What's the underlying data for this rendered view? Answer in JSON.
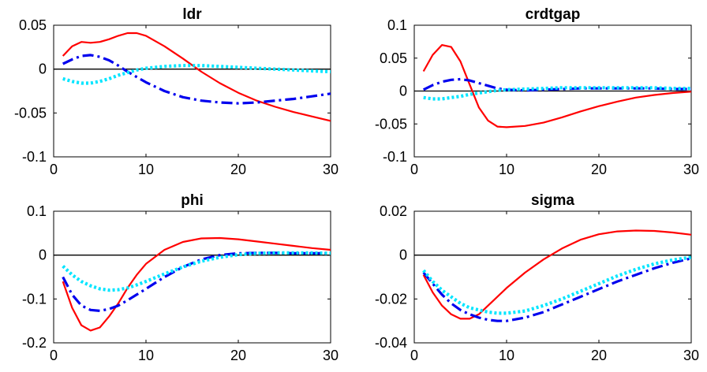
{
  "chart_data": [
    {
      "type": "line",
      "title": "ldr",
      "xlim": [
        0,
        30
      ],
      "ylim": [
        -0.1,
        0.05
      ],
      "xticks": [
        "0",
        "10",
        "20",
        "30"
      ],
      "yticks": [
        "-0.1",
        "-0.05",
        "0",
        "0.05"
      ],
      "ytick_values": [
        -0.1,
        -0.05,
        0,
        0.05
      ],
      "zero_line": true,
      "series": [
        {
          "color": "#ff0000",
          "style": "solid",
          "x": [
            1,
            2,
            3,
            4,
            5,
            6,
            7,
            8,
            9,
            10,
            12,
            14,
            16,
            18,
            20,
            22,
            24,
            26,
            28,
            30
          ],
          "y": [
            0.015,
            0.026,
            0.031,
            0.03,
            0.031,
            0.034,
            0.038,
            0.041,
            0.041,
            0.038,
            0.026,
            0.012,
            -0.003,
            -0.016,
            -0.027,
            -0.036,
            -0.043,
            -0.049,
            -0.054,
            -0.059
          ]
        },
        {
          "color": "#0000ee",
          "style": "dashdot",
          "x": [
            1,
            2,
            3,
            4,
            5,
            6,
            7,
            8,
            9,
            10,
            12,
            14,
            16,
            18,
            20,
            22,
            24,
            26,
            28,
            30
          ],
          "y": [
            0.006,
            0.011,
            0.015,
            0.016,
            0.014,
            0.01,
            0.004,
            -0.003,
            -0.009,
            -0.015,
            -0.025,
            -0.032,
            -0.036,
            -0.038,
            -0.039,
            -0.038,
            -0.036,
            -0.034,
            -0.031,
            -0.028
          ]
        },
        {
          "color": "#00e5ff",
          "style": "dotted",
          "x": [
            1,
            2,
            3,
            4,
            5,
            6,
            7,
            8,
            9,
            10,
            12,
            14,
            16,
            18,
            20,
            22,
            24,
            26,
            28,
            30
          ],
          "y": [
            -0.011,
            -0.014,
            -0.016,
            -0.016,
            -0.014,
            -0.011,
            -0.007,
            -0.004,
            -0.001,
            0.001,
            0.003,
            0.004,
            0.004,
            0.003,
            0.002,
            0.001,
            0.0,
            -0.001,
            -0.002,
            -0.003
          ]
        }
      ]
    },
    {
      "type": "line",
      "title": "crdtgap",
      "xlim": [
        0,
        30
      ],
      "ylim": [
        -0.1,
        0.1
      ],
      "xticks": [
        "0",
        "10",
        "20",
        "30"
      ],
      "yticks": [
        "-0.1",
        "-0.05",
        "0",
        "0.05",
        "0.1"
      ],
      "ytick_values": [
        -0.1,
        -0.05,
        0,
        0.05,
        0.1
      ],
      "zero_line": true,
      "series": [
        {
          "color": "#ff0000",
          "style": "solid",
          "x": [
            1,
            2,
            3,
            4,
            5,
            6,
            7,
            8,
            9,
            10,
            12,
            14,
            16,
            18,
            20,
            22,
            24,
            26,
            28,
            30
          ],
          "y": [
            0.03,
            0.055,
            0.07,
            0.067,
            0.045,
            0.01,
            -0.025,
            -0.045,
            -0.054,
            -0.055,
            -0.053,
            -0.048,
            -0.04,
            -0.031,
            -0.023,
            -0.016,
            -0.01,
            -0.006,
            -0.003,
            -0.001
          ]
        },
        {
          "color": "#0000ee",
          "style": "dashdot",
          "x": [
            1,
            2,
            3,
            4,
            5,
            6,
            7,
            8,
            9,
            10,
            12,
            14,
            16,
            18,
            20,
            22,
            24,
            26,
            28,
            30
          ],
          "y": [
            0.002,
            0.009,
            0.014,
            0.017,
            0.018,
            0.016,
            0.012,
            0.008,
            0.004,
            0.002,
            0.001,
            0.002,
            0.003,
            0.004,
            0.004,
            0.004,
            0.004,
            0.004,
            0.003,
            0.003
          ]
        },
        {
          "color": "#00e5ff",
          "style": "dotted",
          "x": [
            1,
            2,
            3,
            4,
            5,
            6,
            7,
            8,
            9,
            10,
            12,
            14,
            16,
            18,
            20,
            22,
            24,
            26,
            28,
            30
          ],
          "y": [
            -0.01,
            -0.012,
            -0.012,
            -0.01,
            -0.008,
            -0.005,
            -0.003,
            -0.001,
            0.001,
            0.002,
            0.003,
            0.004,
            0.005,
            0.005,
            0.005,
            0.005,
            0.005,
            0.005,
            0.004,
            0.004
          ]
        }
      ]
    },
    {
      "type": "line",
      "title": "phi",
      "xlim": [
        0,
        30
      ],
      "ylim": [
        -0.2,
        0.1
      ],
      "xticks": [
        "0",
        "10",
        "20",
        "30"
      ],
      "yticks": [
        "-0.2",
        "-0.1",
        "0",
        "0.1"
      ],
      "ytick_values": [
        -0.2,
        -0.1,
        0,
        0.1
      ],
      "zero_line": true,
      "series": [
        {
          "color": "#ff0000",
          "style": "solid",
          "x": [
            1,
            2,
            3,
            4,
            5,
            6,
            7,
            8,
            9,
            10,
            12,
            14,
            16,
            18,
            20,
            22,
            24,
            26,
            28,
            30
          ],
          "y": [
            -0.06,
            -0.12,
            -0.16,
            -0.172,
            -0.165,
            -0.14,
            -0.11,
            -0.075,
            -0.045,
            -0.02,
            0.012,
            0.03,
            0.038,
            0.039,
            0.036,
            0.031,
            0.026,
            0.021,
            0.016,
            0.012
          ]
        },
        {
          "color": "#0000ee",
          "style": "dashdot",
          "x": [
            1,
            2,
            3,
            4,
            5,
            6,
            7,
            8,
            9,
            10,
            12,
            14,
            16,
            18,
            20,
            22,
            24,
            26,
            28,
            30
          ],
          "y": [
            -0.05,
            -0.09,
            -0.115,
            -0.125,
            -0.127,
            -0.123,
            -0.115,
            -0.103,
            -0.09,
            -0.077,
            -0.05,
            -0.027,
            -0.01,
            0.0,
            0.004,
            0.005,
            0.005,
            0.004,
            0.004,
            0.004
          ]
        },
        {
          "color": "#00e5ff",
          "style": "dotted",
          "x": [
            1,
            2,
            3,
            4,
            5,
            6,
            7,
            8,
            9,
            10,
            12,
            14,
            16,
            18,
            20,
            22,
            24,
            26,
            28,
            30
          ],
          "y": [
            -0.025,
            -0.045,
            -0.06,
            -0.07,
            -0.077,
            -0.08,
            -0.079,
            -0.075,
            -0.068,
            -0.06,
            -0.043,
            -0.027,
            -0.014,
            -0.005,
            0.001,
            0.004,
            0.005,
            0.005,
            0.005,
            0.004
          ]
        }
      ]
    },
    {
      "type": "line",
      "title": "sigma",
      "xlim": [
        0,
        30
      ],
      "ylim": [
        -0.04,
        0.02
      ],
      "xticks": [
        "0",
        "10",
        "20",
        "30"
      ],
      "yticks": [
        "-0.04",
        "-0.02",
        "0",
        "0.02"
      ],
      "ytick_values": [
        -0.04,
        -0.02,
        0,
        0.02
      ],
      "zero_line": true,
      "series": [
        {
          "color": "#ff0000",
          "style": "solid",
          "x": [
            1,
            2,
            3,
            4,
            5,
            6,
            7,
            8,
            9,
            10,
            12,
            14,
            16,
            18,
            20,
            22,
            24,
            26,
            28,
            30
          ],
          "y": [
            -0.009,
            -0.017,
            -0.023,
            -0.027,
            -0.029,
            -0.029,
            -0.027,
            -0.023,
            -0.019,
            -0.015,
            -0.008,
            -0.002,
            0.003,
            0.007,
            0.0095,
            0.0108,
            0.0112,
            0.011,
            0.0103,
            0.0093
          ]
        },
        {
          "color": "#0000ee",
          "style": "dashdot",
          "x": [
            1,
            2,
            3,
            4,
            5,
            6,
            7,
            8,
            9,
            10,
            12,
            14,
            16,
            18,
            20,
            22,
            24,
            26,
            28,
            30
          ],
          "y": [
            -0.008,
            -0.013,
            -0.018,
            -0.022,
            -0.025,
            -0.027,
            -0.0285,
            -0.0295,
            -0.03,
            -0.03,
            -0.0285,
            -0.026,
            -0.0225,
            -0.019,
            -0.0155,
            -0.012,
            -0.009,
            -0.006,
            -0.0035,
            -0.0015
          ]
        },
        {
          "color": "#00e5ff",
          "style": "dotted",
          "x": [
            1,
            2,
            3,
            4,
            5,
            6,
            7,
            8,
            9,
            10,
            12,
            14,
            16,
            18,
            20,
            22,
            24,
            26,
            28,
            30
          ],
          "y": [
            -0.007,
            -0.012,
            -0.016,
            -0.019,
            -0.022,
            -0.024,
            -0.025,
            -0.026,
            -0.0265,
            -0.0265,
            -0.0255,
            -0.023,
            -0.02,
            -0.0165,
            -0.013,
            -0.0095,
            -0.0065,
            -0.004,
            -0.0022,
            -0.001
          ]
        }
      ]
    }
  ]
}
